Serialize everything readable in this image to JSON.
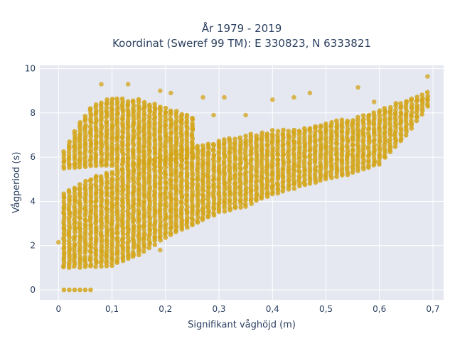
{
  "chart_data": {
    "type": "scatter",
    "title_line1": "År 1979 - 2019",
    "title_line2": "Koordinat (Sweref 99 TM): E 330823, N 6333821",
    "xlabel": "Signifikant våghöjd (m)",
    "ylabel": "Vågperiod (s)",
    "xlim": [
      -0.035,
      0.72
    ],
    "ylim": [
      -0.45,
      10.15
    ],
    "x_ticks": [
      0,
      0.1,
      0.2,
      0.3,
      0.4,
      0.5,
      0.6,
      0.7
    ],
    "x_tick_labels": [
      "0",
      "0,1",
      "0,2",
      "0,3",
      "0,4",
      "0,5",
      "0,6",
      "0,7"
    ],
    "y_ticks": [
      0,
      2,
      4,
      6,
      8,
      10
    ],
    "y_tick_labels": [
      "0",
      "2",
      "4",
      "6",
      "8",
      "10"
    ],
    "grid": true,
    "legend": "none",
    "colors": {
      "marker": "#D4A418",
      "plot_bg": "#E5E8F1",
      "grid": "#ffffff",
      "text": "#2a3f5f"
    },
    "zero_period_points": [
      0.01,
      0.02,
      0.03,
      0.04,
      0.05,
      0.06
    ],
    "swell_band": {
      "x": [
        0.01,
        0.03,
        0.06,
        0.1,
        0.15,
        0.2,
        0.25
      ],
      "y_low": [
        5.5,
        5.5,
        5.6,
        5.6,
        5.7,
        5.8,
        6.0
      ],
      "y_high": [
        6.3,
        7.3,
        8.3,
        8.7,
        8.6,
        8.3,
        7.9
      ]
    },
    "main_band": {
      "x": [
        0.01,
        0.05,
        0.1,
        0.15,
        0.2,
        0.25,
        0.3,
        0.35,
        0.4,
        0.45,
        0.5,
        0.55,
        0.6,
        0.65,
        0.69
      ],
      "y_low": [
        1.0,
        1.05,
        1.1,
        1.6,
        2.4,
        2.9,
        3.5,
        3.8,
        4.3,
        4.7,
        5.0,
        5.3,
        5.7,
        7.0,
        8.3
      ],
      "y_high": [
        4.4,
        5.0,
        5.4,
        5.8,
        6.1,
        6.5,
        6.8,
        7.0,
        7.2,
        7.3,
        7.6,
        7.8,
        8.2,
        8.6,
        9.0
      ]
    },
    "outliers": [
      {
        "x": 0.0,
        "y": 2.15
      },
      {
        "x": 0.08,
        "y": 9.3
      },
      {
        "x": 0.13,
        "y": 9.3
      },
      {
        "x": 0.19,
        "y": 9.0
      },
      {
        "x": 0.21,
        "y": 8.9
      },
      {
        "x": 0.27,
        "y": 8.7
      },
      {
        "x": 0.31,
        "y": 8.7
      },
      {
        "x": 0.35,
        "y": 7.9
      },
      {
        "x": 0.4,
        "y": 8.6
      },
      {
        "x": 0.44,
        "y": 8.7
      },
      {
        "x": 0.47,
        "y": 8.9
      },
      {
        "x": 0.56,
        "y": 9.15
      },
      {
        "x": 0.59,
        "y": 8.5
      },
      {
        "x": 0.69,
        "y": 9.65
      },
      {
        "x": 0.19,
        "y": 1.8
      },
      {
        "x": 0.23,
        "y": 7.7
      },
      {
        "x": 0.29,
        "y": 7.9
      }
    ]
  }
}
